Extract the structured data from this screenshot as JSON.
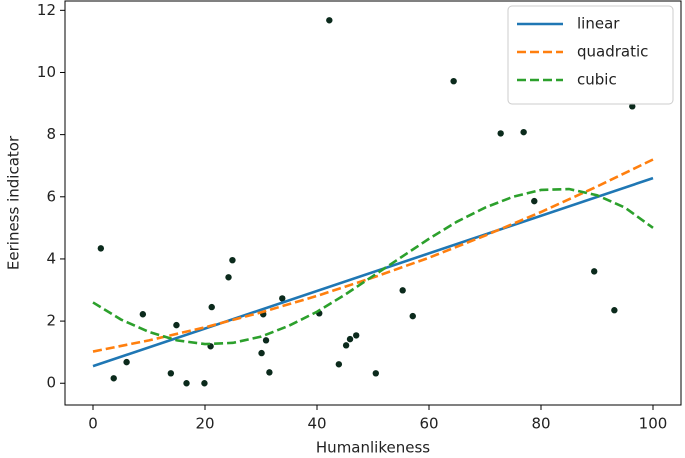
{
  "chart_data": {
    "type": "scatter",
    "xlabel": "Humanlikeness",
    "ylabel": "Eeriness indicator",
    "xlim": [
      -5,
      105
    ],
    "ylim": [
      -0.7,
      12.3
    ],
    "xticks": [
      0,
      20,
      40,
      60,
      80,
      100
    ],
    "yticks": [
      0,
      2,
      4,
      6,
      8,
      10,
      12
    ],
    "legend": "upper right",
    "series": [
      {
        "type": "scatter",
        "color": "#0b2a1c",
        "x": [
          1.4,
          3.7,
          6.0,
          8.9,
          13.9,
          14.9,
          16.7,
          19.9,
          21.0,
          21.2,
          24.2,
          24.9,
          30.1,
          30.4,
          30.9,
          31.5,
          33.8,
          40.4,
          42.2,
          43.9,
          45.2,
          45.9,
          47.0,
          50.5,
          55.3,
          57.1,
          64.4,
          72.8,
          76.9,
          78.8,
          89.5,
          93.1,
          96.3
        ],
        "values": [
          4.34,
          0.16,
          0.68,
          2.22,
          0.32,
          1.87,
          0,
          0,
          1.19,
          2.45,
          3.41,
          3.96,
          0.97,
          2.22,
          1.38,
          0.35,
          2.73,
          2.25,
          11.68,
          0.61,
          1.22,
          1.42,
          1.54,
          0.32,
          2.99,
          2.16,
          9.72,
          8.04,
          8.08,
          5.86,
          3.6,
          2.35,
          8.91
        ]
      },
      {
        "type": "line",
        "name": "linear",
        "color": "#1f77b4",
        "linestyle": "solid",
        "x": [
          0,
          100
        ],
        "values": [
          0.55,
          6.6
        ]
      },
      {
        "type": "line",
        "name": "quadratic",
        "color": "#ff7f0e",
        "linestyle": "dashed",
        "x": [
          0,
          10,
          20,
          30,
          40,
          50,
          60,
          70,
          80,
          90,
          100
        ],
        "values": [
          1.02,
          1.38,
          1.8,
          2.28,
          2.81,
          3.4,
          4.04,
          4.75,
          5.51,
          6.33,
          7.2
        ]
      },
      {
        "type": "line",
        "name": "cubic",
        "color": "#2ca02c",
        "linestyle": "dashed",
        "x": [
          0,
          5,
          10,
          15,
          20,
          25,
          30,
          35,
          40,
          45,
          50,
          55,
          60,
          65,
          70,
          75,
          80,
          85,
          90,
          95,
          100
        ],
        "values": [
          2.6,
          2.05,
          1.65,
          1.38,
          1.26,
          1.3,
          1.5,
          1.85,
          2.3,
          2.85,
          3.45,
          4.05,
          4.65,
          5.2,
          5.65,
          6.0,
          6.22,
          6.25,
          6.05,
          5.65,
          5.0
        ]
      }
    ]
  }
}
